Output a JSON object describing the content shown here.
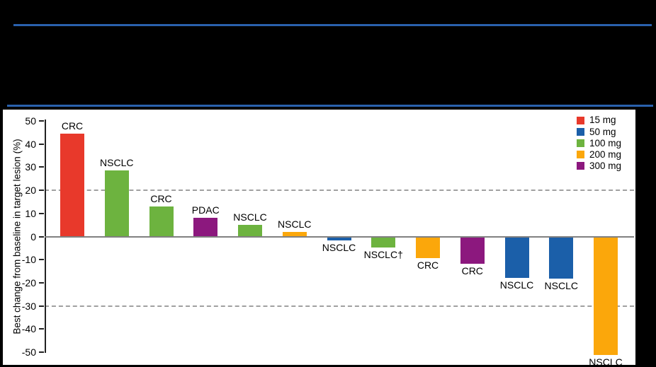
{
  "accent_rule_color": "#2a61ad",
  "chart_data": {
    "type": "bar",
    "subtype": "waterfall",
    "title": "",
    "ylabel": "Best change from baseline in target lesion (%)",
    "ylim": [
      -50,
      50
    ],
    "yticks": [
      50,
      40,
      30,
      20,
      10,
      0,
      -10,
      -20,
      -30,
      -40,
      -50
    ],
    "reference_lines": [
      20,
      -30
    ],
    "grid": "dashed-reference-only",
    "legend_position": "top-right",
    "legend": [
      {
        "label": "15 mg",
        "color": "#e8392b"
      },
      {
        "label": "50 mg",
        "color": "#1b5fa9"
      },
      {
        "label": "100 mg",
        "color": "#6db33f"
      },
      {
        "label": "200 mg",
        "color": "#fba70b"
      },
      {
        "label": "300 mg",
        "color": "#8c187e"
      }
    ],
    "bars": [
      {
        "label": "CRC",
        "dose": "15 mg",
        "value": 44.5
      },
      {
        "label": "NSCLC",
        "dose": "100 mg",
        "value": 28.5
      },
      {
        "label": "CRC",
        "dose": "100 mg",
        "value": 13
      },
      {
        "label": "PDAC",
        "dose": "300 mg",
        "value": 8
      },
      {
        "label": "NSCLC",
        "dose": "100 mg",
        "value": 5
      },
      {
        "label": "NSCLC",
        "dose": "200 mg",
        "value": 2
      },
      {
        "label": "NSCLC",
        "dose": "50 mg",
        "value": -1.5
      },
      {
        "label": "NSCLC†",
        "dose": "100 mg",
        "value": -4.5
      },
      {
        "label": "CRC",
        "dose": "200 mg",
        "value": -9
      },
      {
        "label": "CRC",
        "dose": "300 mg",
        "value": -11.5
      },
      {
        "label": "NSCLC",
        "dose": "50 mg",
        "value": -17.5
      },
      {
        "label": "NSCLC",
        "dose": "50 mg",
        "value": -18
      },
      {
        "label": "NSCLC",
        "dose": "200 mg",
        "value": -51
      }
    ]
  }
}
